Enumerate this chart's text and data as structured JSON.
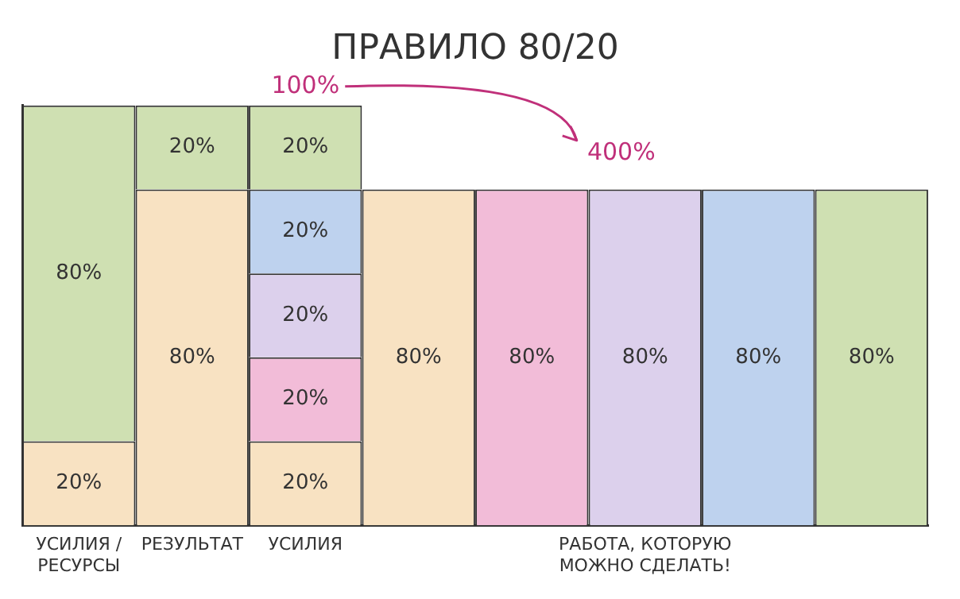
{
  "chart_data": {
    "type": "bar",
    "title": "ПРАВИЛО 80/20",
    "stacked": true,
    "legend": false,
    "grid": false,
    "tick_labels": "x",
    "categories": [
      "УСИЛИЯ / РЕСУРСЫ",
      "РЕЗУЛЬТАТ",
      "УСИЛИЯ",
      null,
      null,
      "РАБОТА, КОТОРУЮ МОЖНО СДЕЛАТЬ!",
      null,
      null
    ],
    "series": [
      {
        "values": [
          20,
          80,
          20,
          80,
          80,
          80,
          80,
          80
        ],
        "colors": [
          "#f8e2c2",
          "#f8e2c2",
          "#f8e2c2",
          "#f8e2c2",
          "#f2bcd8",
          "#dcd0ec",
          "#bed2ee",
          "#cfe0b2"
        ],
        "value_labels": [
          "20%",
          "80%",
          "20%",
          "80%",
          "80%",
          "80%",
          "80%",
          "80%"
        ]
      },
      {
        "values": [
          80,
          20,
          20,
          null,
          null,
          null,
          null,
          null
        ],
        "colors": [
          "#cfe0b2",
          "#cfe0b2",
          "#f2bcd8",
          "#ffffff",
          "#ffffff",
          "#ffffff",
          "#ffffff",
          "#ffffff"
        ],
        "value_labels": [
          "80%",
          "20%",
          "20%",
          null,
          null,
          null,
          null,
          null
        ]
      },
      {
        "values": [
          null,
          null,
          20,
          null,
          null,
          null,
          null,
          null
        ],
        "color": "#dcd0ec",
        "value_labels": [
          null,
          null,
          "20%",
          null,
          null,
          null,
          null,
          null
        ]
      },
      {
        "values": [
          null,
          null,
          20,
          null,
          null,
          null,
          null,
          null
        ],
        "color": "#bed2ee",
        "value_labels": [
          null,
          null,
          "20%",
          null,
          null,
          null,
          null,
          null
        ]
      },
      {
        "values": [
          null,
          null,
          20,
          null,
          null,
          null,
          null,
          null
        ],
        "color": "#cfe0b2",
        "value_labels": [
          null,
          null,
          "20%",
          null,
          null,
          null,
          null,
          null
        ]
      }
    ],
    "annotations": [
      {
        "text": "100%",
        "x": "УСИЛИЯ",
        "y": 100
      },
      "400%"
    ]
  }
}
